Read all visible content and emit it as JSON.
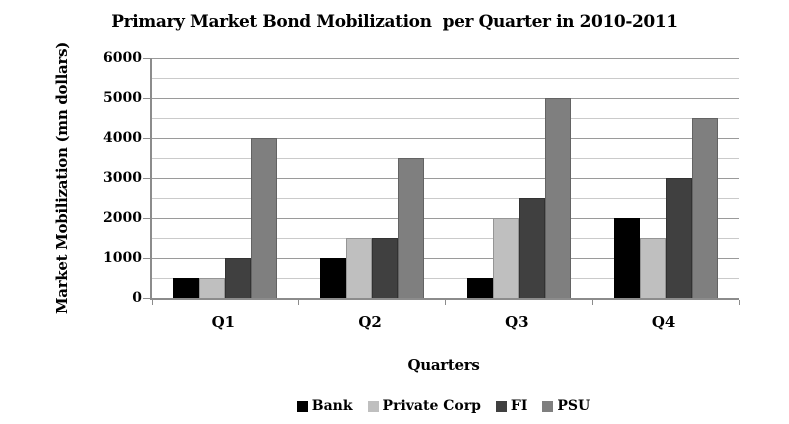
{
  "chart_data": {
    "type": "bar",
    "title": "Primary Market Bond Mobilization  per Quarter in 2010-2011",
    "xlabel": "Quarters",
    "ylabel": "Market Mobilization (mn dollars)",
    "categories": [
      "Q1",
      "Q2",
      "Q3",
      "Q4"
    ],
    "series": [
      {
        "name": "Bank",
        "color": "#000000",
        "values": [
          500,
          1000,
          500,
          2000
        ]
      },
      {
        "name": "Private Corp",
        "color": "#bfbfbf",
        "values": [
          500,
          1500,
          2000,
          1500
        ]
      },
      {
        "name": "FI",
        "color": "#404040",
        "values": [
          1000,
          1500,
          2500,
          3000
        ]
      },
      {
        "name": "PSU",
        "color": "#7f7f7f",
        "values": [
          4000,
          3500,
          5000,
          4500
        ]
      }
    ],
    "ylim": [
      0,
      6000
    ],
    "ytick_labels": [
      "0",
      "1000",
      "2000",
      "3000",
      "4000",
      "5000",
      "6000"
    ],
    "ytick_major_step": 1000,
    "ytick_minor_step": 500,
    "grid": "on",
    "legend_position": "bottom",
    "colors": {
      "grid_major": "#9a9a9a",
      "grid_minor": "#cacaca",
      "axis": "#8c8c8c",
      "text": "#000000",
      "background": "#ffffff"
    }
  }
}
